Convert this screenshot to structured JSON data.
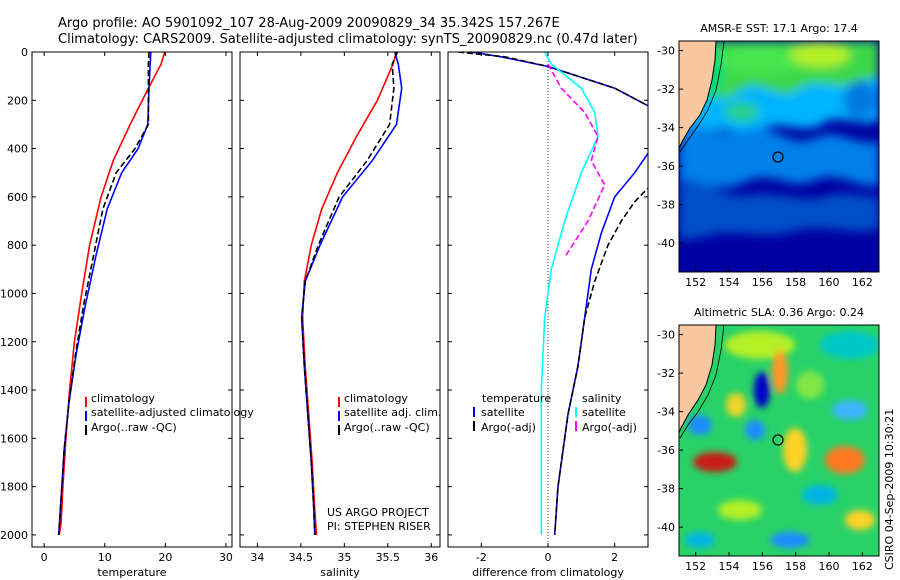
{
  "header": {
    "line1": "Argo profile: AO 5901092_107 28-Aug-2009 20090829_34 35.342S 157.267E",
    "line2": "Climatology: CARS2009. Satellite-adjusted climatology: synTS_20090829.nc (0.47d later)"
  },
  "footer": {
    "project": "US ARGO PROJECT",
    "pi": "PI: STEPHEN RISER",
    "stamp": "CSIRO 04-Sep-2009 10:30:21"
  },
  "colors": {
    "red": "#ff0000",
    "blue": "#0000ff",
    "black": "#000000",
    "cyan": "#00ffff",
    "magenta": "#ff00ff",
    "land": "#fac8a0"
  },
  "chart_data": [
    {
      "type": "line",
      "xlabel": "temperature",
      "xlim": [
        -2,
        31
      ],
      "xticks": [
        0,
        10,
        20,
        30
      ],
      "ylim": [
        0,
        2050
      ],
      "yticks": [
        0,
        200,
        400,
        600,
        800,
        1000,
        1200,
        1400,
        1600,
        1800,
        2000
      ],
      "y_reversed": true,
      "legend": [
        "climatology",
        "satellite-adjusted climatology",
        "Argo(..raw -QC)"
      ],
      "series": [
        {
          "name": "climatology",
          "color": "red",
          "style": "solid",
          "x": [
            19.9,
            19.3,
            17.2,
            14.2,
            11.4,
            9.4,
            7.5,
            6.2,
            5.0,
            4.2,
            3.6,
            3.1,
            2.8,
            2.5
          ],
          "y": [
            0,
            50,
            150,
            300,
            450,
            600,
            800,
            1000,
            1200,
            1400,
            1600,
            1800,
            1950,
            2000
          ]
        },
        {
          "name": "satellite-adjusted climatology",
          "color": "blue",
          "style": "solid",
          "x": [
            17.6,
            17.5,
            17.3,
            17.1,
            15.5,
            12.8,
            10.4,
            8.5,
            6.8,
            5.3,
            4.1,
            3.3,
            2.8,
            2.4
          ],
          "y": [
            0,
            50,
            150,
            300,
            400,
            500,
            650,
            850,
            1050,
            1250,
            1450,
            1650,
            1850,
            2000
          ]
        },
        {
          "name": "Argo(..raw -QC)",
          "color": "black",
          "style": "dashed",
          "x": [
            17.3,
            17.2,
            17.2,
            17.2,
            15.0,
            11.9,
            9.7,
            8.1,
            6.5,
            5.2,
            4.1,
            3.3,
            2.8,
            2.4
          ],
          "y": [
            0,
            50,
            150,
            300,
            400,
            500,
            650,
            850,
            1050,
            1250,
            1450,
            1650,
            1850,
            2000
          ]
        }
      ]
    },
    {
      "type": "line",
      "xlabel": "salinity",
      "xlim": [
        33.8,
        36.1
      ],
      "xticks": [
        34,
        34.5,
        35,
        35.5,
        36
      ],
      "ylim": [
        0,
        2050
      ],
      "y_reversed": true,
      "legend": [
        "climatology",
        "satellite adj. clim.",
        "Argo(..raw -QC)"
      ],
      "series": [
        {
          "name": "climatology",
          "color": "red",
          "style": "solid",
          "x": [
            35.6,
            35.56,
            35.38,
            35.14,
            34.92,
            34.74,
            34.62,
            34.54,
            34.52,
            34.55,
            34.59,
            34.63,
            34.66,
            34.68
          ],
          "y": [
            0,
            50,
            200,
            350,
            500,
            650,
            800,
            950,
            1100,
            1300,
            1500,
            1700,
            1900,
            2000
          ]
        },
        {
          "name": "satellite adj. clim.",
          "color": "blue",
          "style": "solid",
          "x": [
            35.58,
            35.62,
            35.66,
            35.6,
            35.32,
            34.98,
            34.72,
            34.55,
            34.51,
            34.54,
            34.58,
            34.62,
            34.65,
            34.66
          ],
          "y": [
            0,
            50,
            150,
            300,
            450,
            600,
            800,
            950,
            1100,
            1300,
            1500,
            1700,
            1900,
            2000
          ]
        },
        {
          "name": "Argo(..raw -QC)",
          "color": "black",
          "style": "dashed",
          "x": [
            35.61,
            35.55,
            35.57,
            35.52,
            35.26,
            34.94,
            34.7,
            34.55,
            34.51,
            34.54,
            34.58,
            34.62,
            34.65,
            34.66
          ],
          "y": [
            0,
            50,
            150,
            300,
            450,
            600,
            800,
            950,
            1100,
            1300,
            1500,
            1700,
            1900,
            2000
          ]
        }
      ]
    },
    {
      "type": "line",
      "xlabel": "difference from climatology",
      "xlim": [
        -3,
        3
      ],
      "xticks": [
        -2,
        0,
        2
      ],
      "ylim": [
        0,
        2050
      ],
      "y_reversed": true,
      "legend": [
        "temperature",
        "satellite",
        "Argo(-adj)",
        "salinity",
        "satellite",
        "Argo(-adj)"
      ],
      "series": [
        {
          "name": "temperature satellite",
          "color": "blue",
          "style": "solid",
          "x": [
            -2.3,
            -1.4,
            0.0,
            2.0,
            3.1
          ],
          "y": [
            0,
            20,
            60,
            150,
            230
          ]
        },
        {
          "name": "temperature Argo(-adj)",
          "color": "black",
          "style": "dashed",
          "x": [
            -2.7,
            -1.3,
            0.0,
            2.0,
            3.1
          ],
          "y": [
            0,
            20,
            60,
            150,
            230
          ]
        },
        {
          "name": "temperature satellite (deep)",
          "color": "blue",
          "style": "solid",
          "x": [
            3.1,
            2.6,
            2.0,
            1.6,
            1.3,
            1.1,
            0.9,
            0.6,
            0.3,
            0.2
          ],
          "y": [
            400,
            500,
            600,
            750,
            900,
            1100,
            1300,
            1500,
            1800,
            2000
          ]
        },
        {
          "name": "temperature Argo(-adj) (deep)",
          "color": "black",
          "style": "dashed",
          "x": [
            3.1,
            2.6,
            2.2,
            1.8,
            1.4,
            1.1,
            0.9,
            0.6,
            0.3,
            0.2
          ],
          "y": [
            550,
            620,
            700,
            800,
            950,
            1100,
            1300,
            1500,
            1800,
            2000
          ]
        },
        {
          "name": "salinity satellite",
          "color": "cyan",
          "style": "solid",
          "x": [
            -0.1,
            0.1,
            1.0,
            1.4,
            1.5,
            1.0,
            0.5,
            0.1,
            -0.1,
            -0.2,
            -0.2,
            -0.2
          ],
          "y": [
            0,
            50,
            150,
            250,
            350,
            500,
            700,
            900,
            1100,
            1400,
            1700,
            2000
          ]
        },
        {
          "name": "salinity Argo(-adj)",
          "color": "magenta",
          "style": "dashed",
          "x": [
            0.0,
            0.4,
            1.1,
            1.5,
            1.3,
            1.7,
            1.2,
            0.5
          ],
          "y": [
            50,
            150,
            250,
            350,
            450,
            550,
            700,
            850
          ]
        }
      ]
    },
    {
      "type": "heatmap",
      "title": "AMSR-E SST: 17.1 Argo: 17.4",
      "xlim": [
        151,
        163
      ],
      "ylim": [
        -41.5,
        -29.5
      ],
      "xticks": [
        152,
        154,
        156,
        158,
        160,
        162
      ],
      "yticks": [
        -30,
        -32,
        -34,
        -36,
        -38,
        -40
      ],
      "float_marker": {
        "lon": 157.267,
        "lat": -35.342
      }
    },
    {
      "type": "heatmap",
      "title": "Altimetric SLA: 0.36 Argo: 0.24",
      "xlim": [
        151,
        163
      ],
      "ylim": [
        -41.5,
        -29.5
      ],
      "xticks": [
        152,
        154,
        156,
        158,
        160,
        162
      ],
      "yticks": [
        -30,
        -32,
        -34,
        -36,
        -38,
        -40
      ],
      "float_marker": {
        "lon": 157.267,
        "lat": -35.342
      }
    }
  ]
}
